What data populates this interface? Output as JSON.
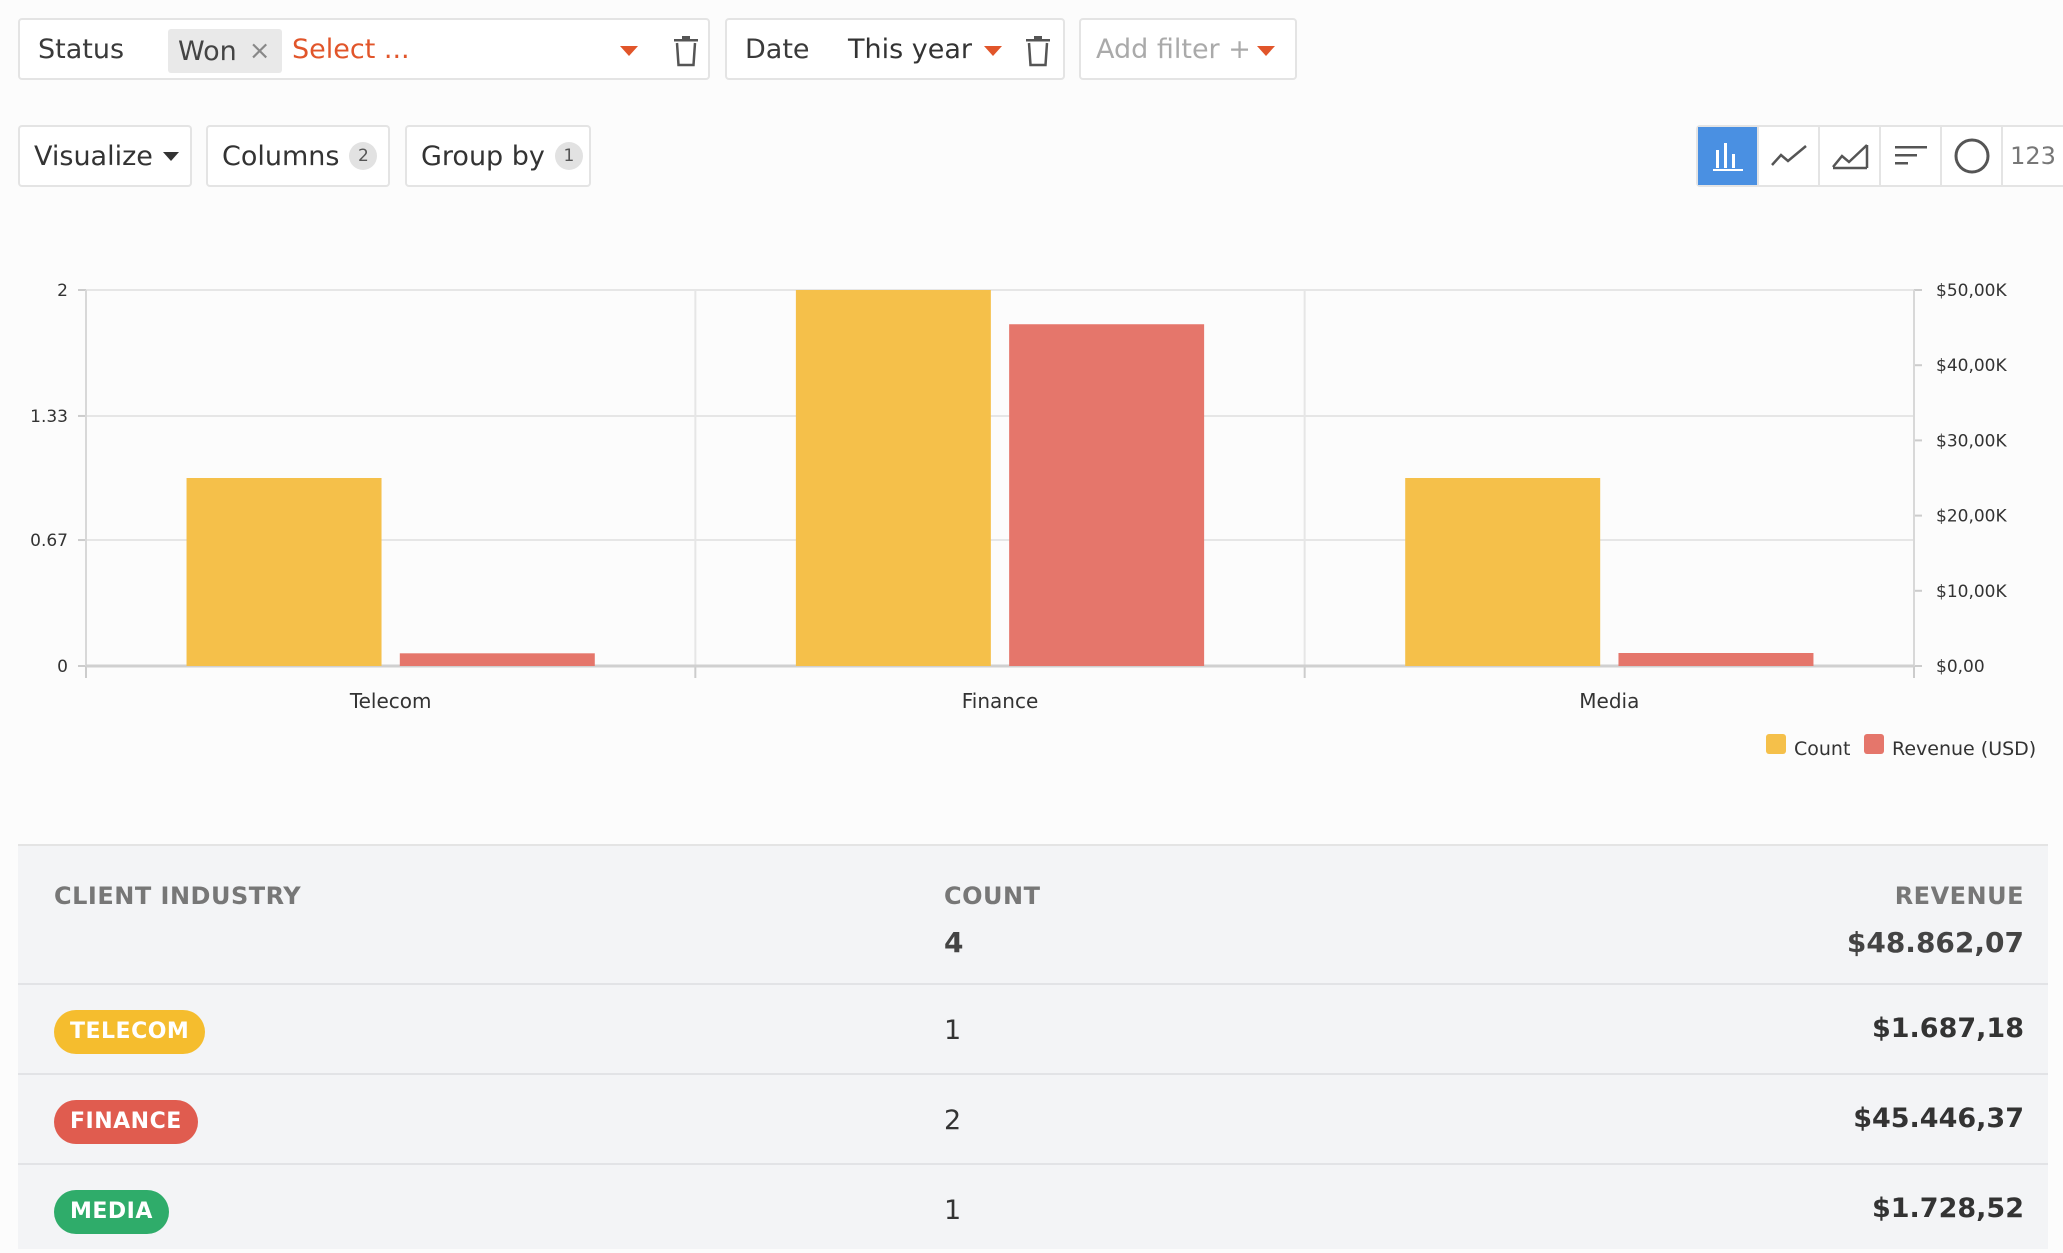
{
  "filters": {
    "status": {
      "label": "Status",
      "chip": "Won",
      "placeholder": "Select ..."
    },
    "date": {
      "label": "Date",
      "value": "This year"
    },
    "add_filter": "Add filter +"
  },
  "toolbar": {
    "visualize": "Visualize",
    "columns": {
      "label": "Columns",
      "count": "2"
    },
    "group_by": {
      "label": "Group by",
      "count": "1"
    },
    "viz_types": [
      "bar-chart-icon",
      "line-chart-icon",
      "area-chart-icon",
      "horizontal-bar-icon",
      "pie-chart-icon"
    ],
    "number_label": "123",
    "active_color": "#4a90e2"
  },
  "chart_data": {
    "type": "bar",
    "categories": [
      "Telecom",
      "Finance",
      "Media"
    ],
    "series": [
      {
        "name": "Count",
        "axis": "left",
        "color": "#f5c04a",
        "values": [
          1,
          2,
          1
        ]
      },
      {
        "name": "Revenue (USD)",
        "axis": "right",
        "color": "#e5766b",
        "values": [
          1687.18,
          45446.37,
          1728.52
        ]
      }
    ],
    "left_axis": {
      "ylim": [
        0,
        2
      ],
      "ticks": [
        "0",
        "0.67",
        "1.33",
        "2"
      ]
    },
    "right_axis": {
      "ylim": [
        0,
        50000
      ],
      "ticks": [
        "$0,00",
        "$10,00K",
        "$20,00K",
        "$30,00K",
        "$40,00K",
        "$50,00K"
      ]
    },
    "grid": true,
    "legend": "bottom-right"
  },
  "table": {
    "headers": {
      "industry": "CLIENT INDUSTRY",
      "count": "COUNT",
      "revenue": "REVENUE"
    },
    "totals": {
      "count": "4",
      "revenue": "$48.862,07"
    },
    "rows": [
      {
        "industry": "TELECOM",
        "color": "#f5bd2e",
        "count": "1",
        "revenue": "$1.687,18"
      },
      {
        "industry": "FINANCE",
        "color": "#e05c4f",
        "count": "2",
        "revenue": "$45.446,37"
      },
      {
        "industry": "MEDIA",
        "color": "#2fac6a",
        "count": "1",
        "revenue": "$1.728,52"
      }
    ]
  }
}
